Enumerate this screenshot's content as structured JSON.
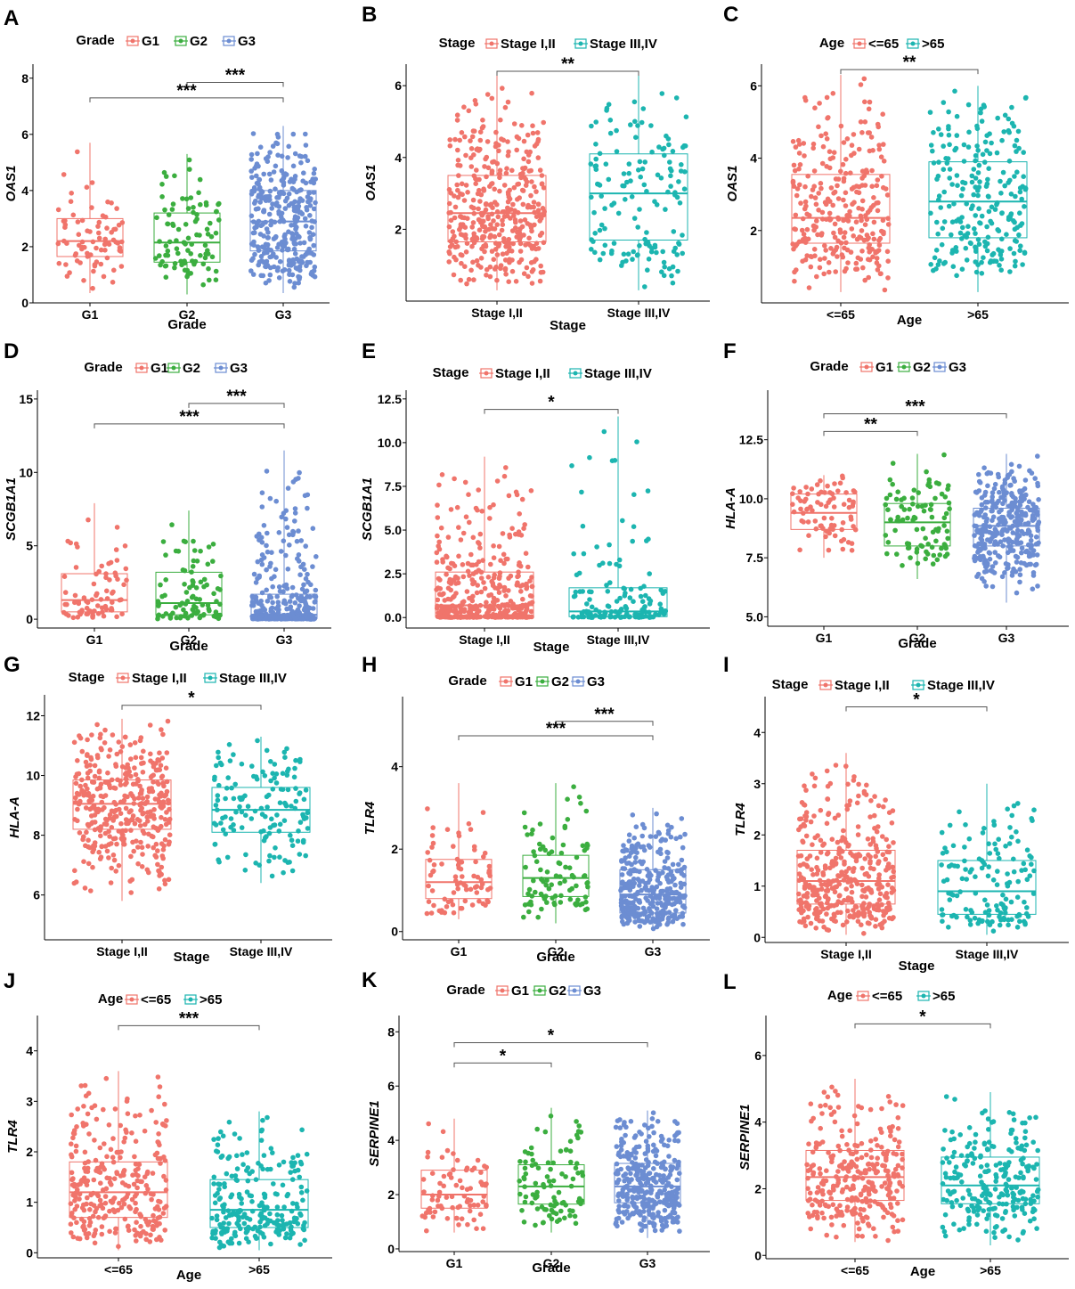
{
  "colors": {
    "red": "#F0746B",
    "green": "#3BAE3F",
    "blue": "#6C8DD2",
    "teal": "#1CB5B0",
    "axis": "#000000"
  },
  "chart_data": [
    {
      "type": "box-jitter",
      "label": "A",
      "gene": "OAS1",
      "ylabel": "OAS1",
      "xlabel": "Grade",
      "legend": {
        "title": "Grade",
        "entries": [
          "G1",
          "G2",
          "G3"
        ]
      },
      "ylim": [
        0,
        8.5
      ],
      "yticks": [
        0,
        2,
        4,
        6,
        8
      ],
      "ytick_labels": [
        "0",
        "2",
        "4",
        "6",
        "8"
      ],
      "categories": [
        "G1",
        "G2",
        "G3"
      ],
      "colors": [
        "red",
        "green",
        "blue"
      ],
      "n": [
        80,
        95,
        330
      ],
      "groups": [
        {
          "name": "G1",
          "min": 0.35,
          "q1": 1.65,
          "median": 2.2,
          "q3": 3.0,
          "max": 5.7
        },
        {
          "name": "G2",
          "min": 0.3,
          "q1": 1.45,
          "median": 2.15,
          "q3": 3.2,
          "max": 5.3
        },
        {
          "name": "G3",
          "min": 0.35,
          "q1": 1.85,
          "median": 2.9,
          "q3": 4.0,
          "max": 6.3
        }
      ],
      "comparisons": [
        {
          "from": 1,
          "to": 2,
          "label": "***",
          "y": 7.85
        },
        {
          "from": 0,
          "to": 2,
          "label": "***",
          "y": 7.3
        }
      ]
    },
    {
      "type": "box-jitter",
      "label": "B",
      "gene": "OAS1",
      "ylabel": "OAS1",
      "xlabel": "Stage",
      "legend": {
        "title": "Stage",
        "entries": [
          "Stage I,II",
          "Stage III,IV"
        ]
      },
      "ylim": [
        0,
        6.6
      ],
      "yticks": [
        2,
        4,
        6
      ],
      "ytick_labels": [
        "2",
        "4",
        "6"
      ],
      "categories": [
        "Stage I,II",
        "Stage III,IV"
      ],
      "colors": [
        "red",
        "teal"
      ],
      "n": [
        390,
        145
      ],
      "groups": [
        {
          "name": "Stage I,II",
          "min": 0.3,
          "q1": 1.65,
          "median": 2.45,
          "q3": 3.5,
          "max": 6.3
        },
        {
          "name": "Stage III,IV",
          "min": 0.3,
          "q1": 1.7,
          "median": 3.0,
          "q3": 4.1,
          "max": 6.3
        }
      ],
      "comparisons": [
        {
          "from": 0,
          "to": 1,
          "label": "**",
          "y": 6.4
        }
      ]
    },
    {
      "type": "box-jitter",
      "label": "C",
      "gene": "OAS1",
      "ylabel": "OAS1",
      "xlabel": "Age",
      "legend": {
        "title": "Age",
        "entries": [
          "<=65",
          ">65"
        ]
      },
      "ylim": [
        0,
        6.6
      ],
      "yticks": [
        2,
        4,
        6
      ],
      "ytick_labels": [
        "2",
        "4",
        "6"
      ],
      "categories": [
        "<=65",
        ">65"
      ],
      "colors": [
        "red",
        "teal"
      ],
      "n": [
        290,
        240
      ],
      "groups": [
        {
          "name": "<=65",
          "min": 0.3,
          "q1": 1.65,
          "median": 2.35,
          "q3": 3.55,
          "max": 6.3
        },
        {
          "name": ">65",
          "min": 0.3,
          "q1": 1.8,
          "median": 2.8,
          "q3": 3.9,
          "max": 6.0
        }
      ],
      "comparisons": [
        {
          "from": 0,
          "to": 1,
          "label": "**",
          "y": 6.45
        }
      ]
    },
    {
      "type": "box-jitter",
      "label": "D",
      "gene": "SCGB1A1",
      "ylabel": "SCGB1A1",
      "xlabel": "Grade",
      "legend": {
        "title": "Grade",
        "entries": [
          "G1",
          "G2",
          "G3"
        ]
      },
      "ylim": [
        -0.6,
        15.6
      ],
      "yticks": [
        0,
        5,
        10,
        15
      ],
      "ytick_labels": [
        "0",
        "5",
        "10",
        "15"
      ],
      "categories": [
        "G1",
        "G2",
        "G3"
      ],
      "colors": [
        "red",
        "green",
        "blue"
      ],
      "n": [
        80,
        95,
        330
      ],
      "groups": [
        {
          "name": "G1",
          "min": 0.0,
          "q1": 0.5,
          "median": 1.3,
          "q3": 3.1,
          "max": 7.9
        },
        {
          "name": "G2",
          "min": 0.0,
          "q1": 0.3,
          "median": 1.1,
          "q3": 3.2,
          "max": 7.4
        },
        {
          "name": "G3",
          "min": 0.0,
          "q1": 0.05,
          "median": 0.3,
          "q3": 1.7,
          "max": 11.5
        }
      ],
      "comparisons": [
        {
          "from": 1,
          "to": 2,
          "label": "***",
          "y": 14.7
        },
        {
          "from": 0,
          "to": 2,
          "label": "***",
          "y": 13.3
        }
      ]
    },
    {
      "type": "box-jitter",
      "label": "E",
      "gene": "SCGB1A1",
      "ylabel": "SCGB1A1",
      "xlabel": "Stage",
      "legend": {
        "title": "Stage",
        "entries": [
          "Stage I,II",
          "Stage III,IV"
        ]
      },
      "ylim": [
        -0.6,
        13.0
      ],
      "yticks": [
        0,
        2.5,
        5,
        7.5,
        10,
        12.5
      ],
      "ytick_labels": [
        "0.0",
        "2.5",
        "5.0",
        "7.5",
        "10.0",
        "12.5"
      ],
      "categories": [
        "Stage I,II",
        "Stage III,IV"
      ],
      "colors": [
        "red",
        "teal"
      ],
      "n": [
        390,
        145
      ],
      "groups": [
        {
          "name": "Stage I,II",
          "min": 0.0,
          "q1": 0.05,
          "median": 0.7,
          "q3": 2.6,
          "max": 9.2
        },
        {
          "name": "Stage III,IV",
          "min": 0.0,
          "q1": 0.05,
          "median": 0.35,
          "q3": 1.7,
          "max": 11.5
        }
      ],
      "comparisons": [
        {
          "from": 0,
          "to": 1,
          "label": "*",
          "y": 11.9
        }
      ]
    },
    {
      "type": "box-jitter",
      "label": "F",
      "gene": "HLA-A",
      "ylabel": "HLA-A",
      "xlabel": "Grade",
      "legend": {
        "title": "Grade",
        "entries": [
          "G1",
          "G2",
          "G3"
        ]
      },
      "ylim": [
        4.6,
        14.6
      ],
      "yticks": [
        5,
        7.5,
        10,
        12.5
      ],
      "ytick_labels": [
        "5.0",
        "7.5",
        "10.0",
        "12.5"
      ],
      "categories": [
        "G1",
        "G2",
        "G3"
      ],
      "colors": [
        "red",
        "green",
        "blue"
      ],
      "n": [
        80,
        95,
        330
      ],
      "groups": [
        {
          "name": "G1",
          "min": 7.5,
          "q1": 8.7,
          "median": 9.4,
          "q3": 10.2,
          "max": 11.0
        },
        {
          "name": "G2",
          "min": 6.6,
          "q1": 8.0,
          "median": 9.0,
          "q3": 9.8,
          "max": 11.9
        },
        {
          "name": "G3",
          "min": 5.6,
          "q1": 8.0,
          "median": 8.85,
          "q3": 9.6,
          "max": 11.9
        }
      ],
      "comparisons": [
        {
          "from": 0,
          "to": 1,
          "label": "**",
          "y": 12.85
        },
        {
          "from": 0,
          "to": 2,
          "label": "***",
          "y": 13.6
        }
      ]
    },
    {
      "type": "box-jitter",
      "label": "G",
      "gene": "HLA-A",
      "ylabel": "HLA-A",
      "xlabel": "Stage",
      "legend": {
        "title": "Stage",
        "entries": [
          "Stage I,II",
          "Stage III,IV"
        ]
      },
      "ylim": [
        4.5,
        12.7
      ],
      "yticks": [
        6,
        8,
        10,
        12
      ],
      "ytick_labels": [
        "6",
        "8",
        "10",
        "12"
      ],
      "categories": [
        "Stage I,II",
        "Stage III,IV"
      ],
      "colors": [
        "red",
        "teal"
      ],
      "n": [
        390,
        145
      ],
      "groups": [
        {
          "name": "Stage I,II",
          "min": 5.8,
          "q1": 8.2,
          "median": 9.05,
          "q3": 9.85,
          "max": 11.9
        },
        {
          "name": "Stage III,IV",
          "min": 6.4,
          "q1": 8.1,
          "median": 8.85,
          "q3": 9.6,
          "max": 11.3
        }
      ],
      "comparisons": [
        {
          "from": 0,
          "to": 1,
          "label": "*",
          "y": 12.35
        }
      ]
    },
    {
      "type": "box-jitter",
      "label": "H",
      "gene": "TLR4",
      "ylabel": "TLR4",
      "xlabel": "Grade",
      "legend": {
        "title": "Grade",
        "entries": [
          "G1",
          "G2",
          "G3"
        ]
      },
      "ylim": [
        -0.2,
        5.7
      ],
      "yticks": [
        0,
        2,
        4
      ],
      "ytick_labels": [
        "0",
        "2",
        "4"
      ],
      "categories": [
        "G1",
        "G2",
        "G3"
      ],
      "colors": [
        "red",
        "green",
        "blue"
      ],
      "n": [
        80,
        95,
        330
      ],
      "groups": [
        {
          "name": "G1",
          "min": 0.3,
          "q1": 0.8,
          "median": 1.2,
          "q3": 1.75,
          "max": 3.6
        },
        {
          "name": "G2",
          "min": 0.2,
          "q1": 0.85,
          "median": 1.3,
          "q3": 1.85,
          "max": 3.6
        },
        {
          "name": "G3",
          "min": 0.05,
          "q1": 0.45,
          "median": 0.9,
          "q3": 1.5,
          "max": 3.0
        }
      ],
      "comparisons": [
        {
          "from": 1,
          "to": 2,
          "label": "***",
          "y": 5.1
        },
        {
          "from": 0,
          "to": 2,
          "label": "***",
          "y": 4.75
        }
      ]
    },
    {
      "type": "box-jitter",
      "label": "I",
      "gene": "TLR4",
      "ylabel": "TLR4",
      "xlabel": "Stage",
      "legend": {
        "title": "Stage",
        "entries": [
          "Stage I,II",
          "Stage III,IV"
        ]
      },
      "ylim": [
        -0.1,
        4.7
      ],
      "yticks": [
        0,
        1,
        2,
        3,
        4
      ],
      "ytick_labels": [
        "0",
        "1",
        "2",
        "3",
        "4"
      ],
      "categories": [
        "Stage I,II",
        "Stage III,IV"
      ],
      "colors": [
        "red",
        "teal"
      ],
      "n": [
        390,
        145
      ],
      "groups": [
        {
          "name": "Stage I,II",
          "min": 0.05,
          "q1": 0.65,
          "median": 1.1,
          "q3": 1.7,
          "max": 3.6
        },
        {
          "name": "Stage III,IV",
          "min": 0.05,
          "q1": 0.45,
          "median": 0.9,
          "q3": 1.5,
          "max": 3.0
        }
      ],
      "comparisons": [
        {
          "from": 0,
          "to": 1,
          "label": "*",
          "y": 4.5
        }
      ]
    },
    {
      "type": "box-jitter",
      "label": "J",
      "gene": "TLR4",
      "ylabel": "TLR4",
      "xlabel": "Age",
      "legend": {
        "title": "Age",
        "entries": [
          "<=65",
          ">65"
        ]
      },
      "ylim": [
        -0.1,
        4.7
      ],
      "yticks": [
        0,
        1,
        2,
        3,
        4
      ],
      "ytick_labels": [
        "0",
        "1",
        "2",
        "3",
        "4"
      ],
      "categories": [
        "<=65",
        ">65"
      ],
      "colors": [
        "red",
        "teal"
      ],
      "n": [
        290,
        240
      ],
      "groups": [
        {
          "name": "<=65",
          "min": 0.05,
          "q1": 0.7,
          "median": 1.2,
          "q3": 1.8,
          "max": 3.6
        },
        {
          "name": ">65",
          "min": 0.05,
          "q1": 0.5,
          "median": 0.85,
          "q3": 1.45,
          "max": 2.8
        }
      ],
      "comparisons": [
        {
          "from": 0,
          "to": 1,
          "label": "***",
          "y": 4.5
        }
      ]
    },
    {
      "type": "box-jitter",
      "label": "K",
      "gene": "SERPINE1",
      "ylabel": "SERPINE1",
      "xlabel": "Grade",
      "legend": {
        "title": "Grade",
        "entries": [
          "G1",
          "G2",
          "G3"
        ]
      },
      "ylim": [
        -0.1,
        8.6
      ],
      "yticks": [
        0,
        2,
        4,
        6,
        8
      ],
      "ytick_labels": [
        "0",
        "2",
        "4",
        "6",
        "8"
      ],
      "categories": [
        "G1",
        "G2",
        "G3"
      ],
      "colors": [
        "red",
        "green",
        "blue"
      ],
      "n": [
        80,
        95,
        330
      ],
      "groups": [
        {
          "name": "G1",
          "min": 0.6,
          "q1": 1.5,
          "median": 2.0,
          "q3": 2.9,
          "max": 4.8
        },
        {
          "name": "G2",
          "min": 0.6,
          "q1": 1.65,
          "median": 2.3,
          "q3": 3.1,
          "max": 5.2
        },
        {
          "name": "G3",
          "min": 0.4,
          "q1": 1.7,
          "median": 2.3,
          "q3": 3.15,
          "max": 5.1
        }
      ],
      "comparisons": [
        {
          "from": 0,
          "to": 1,
          "label": "*",
          "y": 6.85
        },
        {
          "from": 0,
          "to": 2,
          "label": "*",
          "y": 7.6
        }
      ]
    },
    {
      "type": "box-jitter",
      "label": "L",
      "gene": "SERPINE1",
      "ylabel": "SERPINE1",
      "xlabel": "Age",
      "legend": {
        "title": "Age",
        "entries": [
          "<=65",
          ">65"
        ]
      },
      "ylim": [
        -0.1,
        7.2
      ],
      "yticks": [
        0,
        2,
        4,
        6
      ],
      "ytick_labels": [
        "0",
        "2",
        "4",
        "6"
      ],
      "categories": [
        "<=65",
        ">65"
      ],
      "colors": [
        "red",
        "teal"
      ],
      "n": [
        290,
        240
      ],
      "groups": [
        {
          "name": "<=65",
          "min": 0.4,
          "q1": 1.65,
          "median": 2.35,
          "q3": 3.15,
          "max": 5.3
        },
        {
          "name": ">65",
          "min": 0.3,
          "q1": 1.55,
          "median": 2.1,
          "q3": 2.95,
          "max": 4.9
        }
      ],
      "comparisons": [
        {
          "from": 0,
          "to": 1,
          "label": "*",
          "y": 6.95
        }
      ]
    }
  ]
}
